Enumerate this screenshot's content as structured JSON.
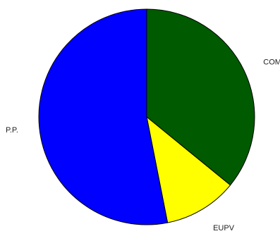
{
  "chart_data": {
    "type": "pie",
    "title": "",
    "start_angle_deg": 90,
    "direction": "clockwise",
    "slices": [
      {
        "label": "COMP",
        "value": 35.9,
        "color": "#005a00"
      },
      {
        "label": "EUPV",
        "value": 11.0,
        "color": "#ffff00"
      },
      {
        "label": "P.P.",
        "value": 53.1,
        "color": "#0000ff"
      }
    ]
  }
}
